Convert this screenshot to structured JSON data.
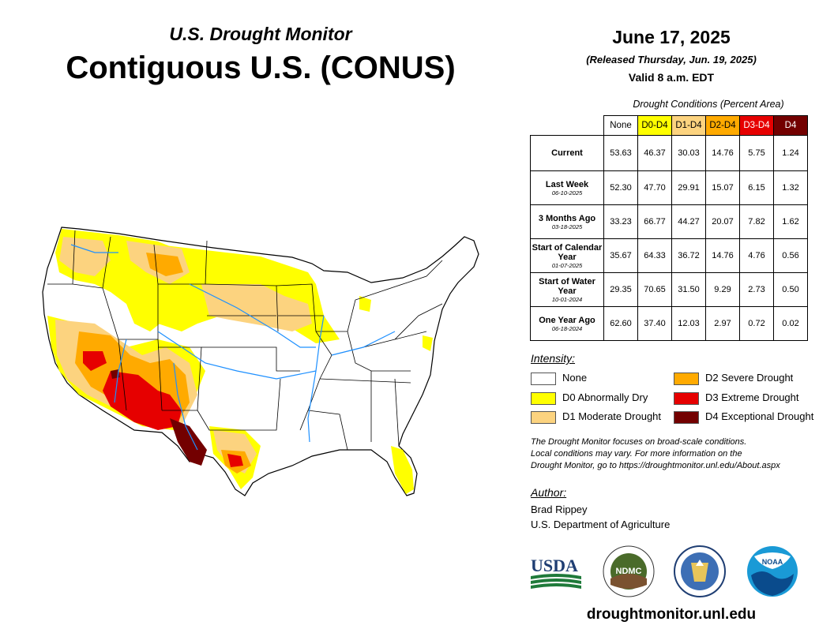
{
  "header": {
    "subtitle": "U.S. Drought Monitor",
    "title": "Contiguous U.S. (CONUS)",
    "date": "June 17, 2025",
    "released": "(Released Thursday, Jun. 19, 2025)",
    "valid": "Valid 8 a.m. EDT"
  },
  "conditions": {
    "caption": "Drought Conditions (Percent Area)",
    "columns": [
      "None",
      "D0-D4",
      "D1-D4",
      "D2-D4",
      "D3-D4",
      "D4"
    ],
    "rows": [
      {
        "label": "Current",
        "date": "",
        "values": [
          "53.63",
          "46.37",
          "30.03",
          "14.76",
          "5.75",
          "1.24"
        ]
      },
      {
        "label": "Last Week",
        "date": "06-10-2025",
        "values": [
          "52.30",
          "47.70",
          "29.91",
          "15.07",
          "6.15",
          "1.32"
        ]
      },
      {
        "label": "3 Months Ago",
        "date": "03-18-2025",
        "values": [
          "33.23",
          "66.77",
          "44.27",
          "20.07",
          "7.82",
          "1.62"
        ]
      },
      {
        "label": "Start of Calendar Year",
        "date": "01-07-2025",
        "values": [
          "35.67",
          "64.33",
          "36.72",
          "14.76",
          "4.76",
          "0.56"
        ]
      },
      {
        "label": "Start of Water Year",
        "date": "10-01-2024",
        "values": [
          "29.35",
          "70.65",
          "31.50",
          "9.29",
          "2.73",
          "0.50"
        ]
      },
      {
        "label": "One Year Ago",
        "date": "06-18-2024",
        "values": [
          "62.60",
          "37.40",
          "12.03",
          "2.97",
          "0.72",
          "0.02"
        ]
      }
    ]
  },
  "legend": {
    "heading": "Intensity:",
    "items": [
      {
        "label": "None",
        "color": "#ffffff"
      },
      {
        "label": "D0 Abnormally Dry",
        "color": "#ffff00"
      },
      {
        "label": "D1 Moderate Drought",
        "color": "#fcd37f"
      },
      {
        "label": "D2 Severe Drought",
        "color": "#ffaa00"
      },
      {
        "label": "D3 Extreme Drought",
        "color": "#e60000"
      },
      {
        "label": "D4 Exceptional Drought",
        "color": "#730000"
      }
    ]
  },
  "note": {
    "line1": "The Drought Monitor focuses on broad-scale conditions.",
    "line2": "Local conditions may vary. For more information on the",
    "line3": "Drought Monitor, go to https://droughtmonitor.unl.edu/About.aspx"
  },
  "author": {
    "heading": "Author:",
    "name": "Brad Rippey",
    "org": "U.S. Department of Agriculture"
  },
  "logos": {
    "usda": "USDA",
    "ndmc": "NDMC",
    "noaa": "NOAA"
  },
  "footer": {
    "url": "droughtmonitor.unl.edu"
  }
}
